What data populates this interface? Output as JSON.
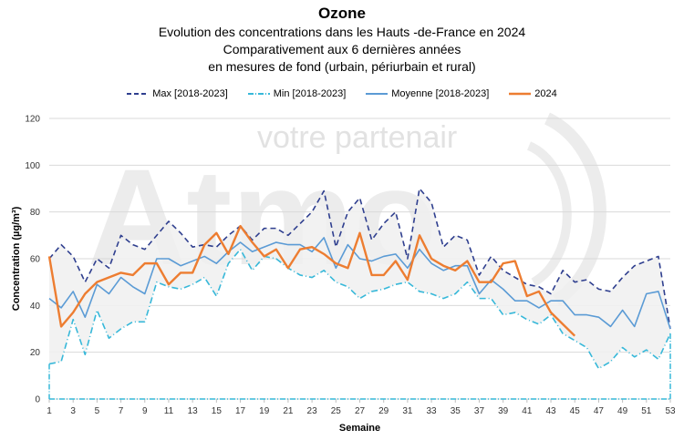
{
  "chart_data": {
    "type": "line",
    "title": "Ozone",
    "subtitle_lines": [
      "Evolution des concentrations dans les Hauts -de-France en 2024",
      "Comparativement aux 6 dernières années",
      "en mesures de fond (urbain, périurbain et rural)"
    ],
    "xlabel": "Semaine",
    "ylabel": "Concentration (µg/m³)",
    "ylim": [
      0,
      120
    ],
    "yticks": [
      0,
      20,
      40,
      60,
      80,
      100,
      120
    ],
    "xlim": [
      1,
      53
    ],
    "xticks": [
      1,
      3,
      5,
      7,
      9,
      11,
      13,
      15,
      17,
      19,
      21,
      23,
      25,
      27,
      29,
      31,
      33,
      35,
      37,
      39,
      41,
      43,
      45,
      47,
      49,
      51,
      53
    ],
    "grid": "horizontal",
    "legend_position": "top",
    "band_between": [
      "Min [2018-2023]",
      "Max [2018-2023]"
    ],
    "watermark": "Atmo votre partenair",
    "series": [
      {
        "name": "Max [2018-2023]",
        "style": "dashed",
        "color": "#2f3f8f",
        "values": [
          60,
          66,
          61,
          50,
          60,
          56,
          70,
          66,
          64,
          70,
          76,
          71,
          65,
          66,
          65,
          70,
          74,
          68,
          73,
          73,
          70,
          75,
          80,
          89,
          65,
          80,
          86,
          68,
          75,
          80,
          60,
          90,
          84,
          65,
          70,
          68,
          53,
          61,
          55,
          52,
          49,
          48,
          45,
          55,
          50,
          51,
          47,
          46,
          52,
          57,
          59,
          61,
          30
        ]
      },
      {
        "name": "Min [2018-2023]",
        "style": "dashdot",
        "color": "#37b8d9",
        "values": [
          15,
          16,
          34,
          19,
          38,
          26,
          30,
          33,
          33,
          50,
          48,
          47,
          49,
          52,
          44,
          58,
          64,
          55,
          61,
          60,
          56,
          53,
          52,
          55,
          50,
          48,
          43,
          46,
          47,
          49,
          50,
          46,
          45,
          43,
          45,
          50,
          43,
          43,
          36,
          37,
          34,
          32,
          36,
          28,
          25,
          22,
          13,
          16,
          22,
          18,
          21,
          17,
          28
        ]
      },
      {
        "name": "Moyenne [2018-2023]",
        "style": "solid",
        "color": "#5b9bd5",
        "values": [
          43,
          39,
          46,
          35,
          49,
          45,
          52,
          48,
          45,
          60,
          60,
          57,
          59,
          61,
          58,
          63,
          67,
          63,
          65,
          67,
          66,
          66,
          63,
          69,
          56,
          66,
          60,
          59,
          61,
          62,
          56,
          64,
          58,
          55,
          57,
          57,
          45,
          51,
          47,
          42,
          42,
          39,
          42,
          42,
          36,
          36,
          35,
          31,
          38,
          31,
          45,
          46,
          30
        ]
      },
      {
        "name": "2024",
        "style": "solid",
        "color": "#ed7d31",
        "values": [
          61,
          31,
          37,
          45,
          50,
          52,
          54,
          53,
          58,
          58,
          49,
          54,
          54,
          66,
          71,
          62,
          74,
          67,
          61,
          64,
          56,
          64,
          65,
          62,
          58,
          56,
          71,
          53,
          53,
          59,
          51,
          70,
          60,
          57,
          55,
          59,
          50,
          50,
          58,
          59,
          44,
          46,
          37,
          32,
          27,
          null,
          null,
          null,
          null,
          null,
          null,
          null,
          null
        ]
      }
    ]
  }
}
